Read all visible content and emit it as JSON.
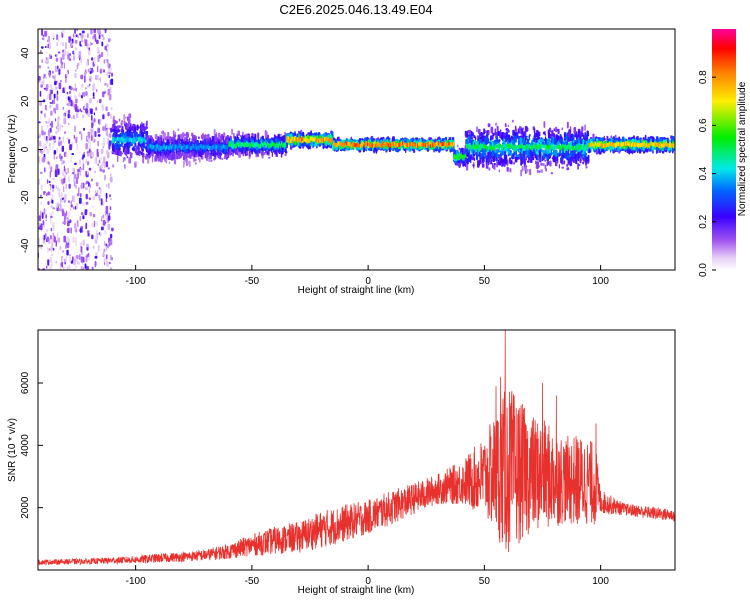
{
  "title": "C2E6.2025.046.13.49.E04",
  "chart_data": [
    {
      "type": "heatmap",
      "xlabel": "Height of straight line (km)",
      "ylabel": "Frequency (Hz)",
      "xlim": [
        -142,
        132
      ],
      "ylim": [
        -50,
        50
      ],
      "xticks": [
        -100,
        -50,
        0,
        50,
        100
      ],
      "yticks": [
        -40,
        -20,
        0,
        20,
        40
      ],
      "colorbar": {
        "label": "Normalized spectral amplitude",
        "range": [
          0,
          1
        ],
        "ticks": [
          0.0,
          0.2,
          0.4,
          0.6,
          0.8
        ],
        "colormap": "rainbow (white-violet-blue-cyan-green-yellow-red-magenta)"
      },
      "segments": [
        {
          "x_start": -142,
          "x_end": -110,
          "center_freq": 0,
          "halfwidth_hz": 50,
          "peak_amplitude": 0.12
        },
        {
          "x_start": -110,
          "x_end": -95,
          "center_freq": 4,
          "halfwidth_hz": 12,
          "peak_amplitude": 0.45
        },
        {
          "x_start": -95,
          "x_end": -60,
          "center_freq": 1,
          "halfwidth_hz": 8,
          "peak_amplitude": 0.4
        },
        {
          "x_start": -60,
          "x_end": -35,
          "center_freq": 2,
          "halfwidth_hz": 6,
          "peak_amplitude": 0.55
        },
        {
          "x_start": -35,
          "x_end": -15,
          "center_freq": 4,
          "halfwidth_hz": 4,
          "peak_amplitude": 0.85
        },
        {
          "x_start": -15,
          "x_end": 37,
          "center_freq": 2,
          "halfwidth_hz": 3,
          "peak_amplitude": 0.9
        },
        {
          "x_start": 37,
          "x_end": 42,
          "center_freq": -3,
          "halfwidth_hz": 5,
          "peak_amplitude": 0.6
        },
        {
          "x_start": 42,
          "x_end": 95,
          "center_freq": 1,
          "halfwidth_hz": 12,
          "peak_amplitude": 0.55
        },
        {
          "x_start": 95,
          "x_end": 132,
          "center_freq": 2,
          "halfwidth_hz": 4,
          "peak_amplitude": 0.8
        }
      ]
    },
    {
      "type": "line",
      "xlabel": "Height of straight line (km)",
      "ylabel": "SNR (10 * v/v)",
      "xlim": [
        -142,
        132
      ],
      "ylim": [
        0,
        7700
      ],
      "xticks": [
        -100,
        -50,
        0,
        50,
        100
      ],
      "yticks": [
        2000,
        4000,
        6000
      ],
      "color": "#e8302c",
      "series": [
        {
          "x": [
            -142,
            -120,
            -100,
            -90,
            -80,
            -70,
            -60,
            -50,
            -40,
            -30,
            -20,
            -10,
            0,
            10,
            20,
            30,
            40,
            50,
            55,
            60,
            65,
            70,
            75,
            80,
            85,
            90,
            95,
            98,
            100,
            110,
            120,
            132
          ],
          "envelope_center": [
            250,
            280,
            330,
            380,
            420,
            480,
            600,
            800,
            950,
            1050,
            1300,
            1500,
            1700,
            2000,
            2300,
            2600,
            2800,
            3000,
            3100,
            3200,
            3150,
            3100,
            3050,
            2950,
            2900,
            2850,
            2850,
            2700,
            2200,
            1950,
            1850,
            1750
          ],
          "noise_amplitude": [
            80,
            90,
            120,
            150,
            150,
            180,
            250,
            350,
            450,
            500,
            600,
            600,
            550,
            550,
            500,
            500,
            700,
            1300,
            2000,
            2800,
            2300,
            1900,
            1800,
            1600,
            1400,
            1500,
            1400,
            1300,
            400,
            200,
            200,
            200
          ],
          "peak_values": [
            [
              59,
              7700
            ],
            [
              57,
              6200
            ],
            [
              55,
              5900
            ],
            [
              75,
              6000
            ],
            [
              81,
              5600
            ],
            [
              98,
              4700
            ]
          ]
        }
      ]
    }
  ]
}
